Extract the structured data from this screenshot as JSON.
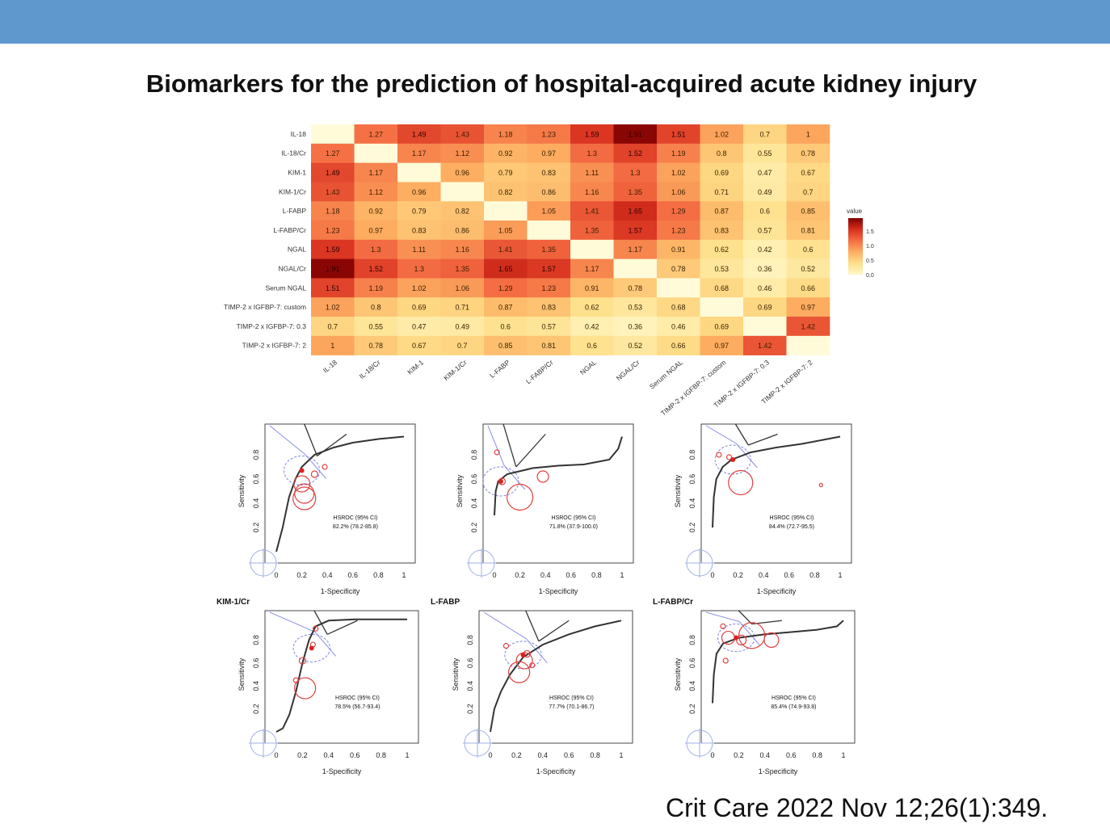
{
  "slide": {
    "title": "Biomarkers for the prediction of hospital-acquired acute kidney injury",
    "citation": "Crit Care 2022 Nov 12;26(1):349.",
    "header_bar_color": "#5f98cc"
  },
  "chart_data": [
    {
      "type": "heatmap",
      "rows": [
        "IL-18",
        "IL-18/Cr",
        "KIM-1",
        "KIM-1/Cr",
        "L-FABP",
        "L-FABP/Cr",
        "NGAL",
        "NGAL/Cr",
        "Serum NGAL",
        "TIMP-2 x IGFBP-7: custom",
        "TIMP-2 x IGFBP-7: 0.3",
        "TIMP-2 x IGFBP-7: 2"
      ],
      "columns": [
        "IL-18",
        "IL-18/Cr",
        "KIM-1",
        "KIM-1/Cr",
        "L-FABP",
        "L-FABP/Cr",
        "NGAL",
        "NGAL/Cr",
        "Serum NGAL",
        "TIMP-2 x IGFBP-7: custom",
        "TIMP-2 x IGFBP-7: 0.3",
        "TIMP-2 x IGFBP-7: 2"
      ],
      "values": [
        [
          null,
          1.27,
          1.49,
          1.43,
          1.18,
          1.23,
          1.59,
          1.91,
          1.51,
          1.02,
          0.7,
          1
        ],
        [
          1.27,
          null,
          1.17,
          1.12,
          0.92,
          0.97,
          1.3,
          1.52,
          1.19,
          0.8,
          0.55,
          0.78
        ],
        [
          1.49,
          1.17,
          null,
          0.96,
          0.79,
          0.83,
          1.11,
          1.3,
          1.02,
          0.69,
          0.47,
          0.67
        ],
        [
          1.43,
          1.12,
          0.96,
          null,
          0.82,
          0.86,
          1.16,
          1.35,
          1.06,
          0.71,
          0.49,
          0.7
        ],
        [
          1.18,
          0.92,
          0.79,
          0.82,
          null,
          1.05,
          1.41,
          1.65,
          1.29,
          0.87,
          0.6,
          0.85
        ],
        [
          1.23,
          0.97,
          0.83,
          0.86,
          1.05,
          null,
          1.35,
          1.57,
          1.23,
          0.83,
          0.57,
          0.81
        ],
        [
          1.59,
          1.3,
          1.11,
          1.16,
          1.41,
          1.35,
          null,
          1.17,
          0.91,
          0.62,
          0.42,
          0.6
        ],
        [
          1.91,
          1.52,
          1.3,
          1.35,
          1.65,
          1.57,
          1.17,
          null,
          0.78,
          0.53,
          0.36,
          0.52
        ],
        [
          1.51,
          1.19,
          1.02,
          1.06,
          1.29,
          1.23,
          0.91,
          0.78,
          null,
          0.68,
          0.46,
          0.66
        ],
        [
          1.02,
          0.8,
          0.69,
          0.71,
          0.87,
          0.83,
          0.62,
          0.53,
          0.68,
          null,
          0.69,
          0.97
        ],
        [
          0.7,
          0.55,
          0.47,
          0.49,
          0.6,
          0.57,
          0.42,
          0.36,
          0.46,
          0.69,
          null,
          1.42
        ],
        [
          1,
          0.78,
          0.67,
          0.7,
          0.85,
          0.81,
          0.6,
          0.52,
          0.66,
          0.97,
          1.42,
          null
        ]
      ],
      "legend": {
        "title": "value",
        "ticks": [
          "1.5",
          "1.0",
          "0.5",
          "0.0"
        ],
        "placement": "right"
      },
      "colorscale": [
        "#fff7c6",
        "#fee08b",
        "#fdae61",
        "#f46d43",
        "#d7301f",
        "#7f0000"
      ]
    },
    {
      "type": "line",
      "panel": "top-left",
      "title": "",
      "xlabel": "1-Specificity",
      "ylabel": "Sensitivity",
      "xticks": [
        "0",
        "0.2",
        "0.4",
        "0.6",
        "0.8",
        "1"
      ],
      "yticks": [
        "0.2",
        "0.4",
        "0.6",
        "0.8"
      ],
      "xlim": [
        0,
        1
      ],
      "ylim": [
        0,
        1
      ],
      "curve": [
        [
          0,
          0
        ],
        [
          0.05,
          0.2
        ],
        [
          0.1,
          0.45
        ],
        [
          0.15,
          0.6
        ],
        [
          0.2,
          0.7
        ],
        [
          0.3,
          0.8
        ],
        [
          0.45,
          0.86
        ],
        [
          0.6,
          0.9
        ],
        [
          0.8,
          0.93
        ],
        [
          1,
          0.95
        ]
      ],
      "summary_point": [
        0.2,
        0.67
      ],
      "studies": [
        [
          0.2,
          0.56,
          10
        ],
        [
          0.22,
          0.48,
          12
        ],
        [
          0.22,
          0.44,
          14
        ],
        [
          0.3,
          0.64,
          4
        ],
        [
          0.38,
          0.7,
          3
        ]
      ],
      "annotation": [
        "HSROC (95% CI)",
        "82.2% (78.2-85.8)"
      ]
    },
    {
      "type": "line",
      "panel": "top-middle",
      "title": "",
      "xlabel": "1-Specificity",
      "ylabel": "Sensitivity",
      "xticks": [
        "0",
        "0.2",
        "0.4",
        "0.6",
        "0.8",
        "1"
      ],
      "yticks": [
        "0.2",
        "0.4",
        "0.6",
        "0.8"
      ],
      "xlim": [
        0,
        1
      ],
      "ylim": [
        0,
        1
      ],
      "curve": [
        [
          0,
          0.3
        ],
        [
          0.01,
          0.5
        ],
        [
          0.03,
          0.58
        ],
        [
          0.1,
          0.64
        ],
        [
          0.3,
          0.69
        ],
        [
          0.5,
          0.71
        ],
        [
          0.7,
          0.72
        ],
        [
          0.9,
          0.76
        ],
        [
          0.97,
          0.85
        ],
        [
          1,
          0.95
        ]
      ],
      "summary_point": [
        0.05,
        0.58
      ],
      "studies": [
        [
          0.2,
          0.45,
          16
        ],
        [
          0.38,
          0.62,
          7
        ],
        [
          0.02,
          0.82,
          3
        ],
        [
          0.06,
          0.58,
          4
        ]
      ],
      "annotation": [
        "HSROC (95% CI)",
        "71.8% (37.9-100.0)"
      ]
    },
    {
      "type": "line",
      "panel": "top-right",
      "title": "",
      "xlabel": "1-Specificity",
      "ylabel": "Sensitivity",
      "xticks": [
        "0",
        "0.2",
        "0.4",
        "0.6",
        "0.8",
        "1"
      ],
      "yticks": [
        "0.2",
        "0.4",
        "0.6",
        "0.8"
      ],
      "xlim": [
        0,
        1
      ],
      "ylim": [
        0,
        1
      ],
      "curve": [
        [
          0,
          0.2
        ],
        [
          0.01,
          0.45
        ],
        [
          0.03,
          0.6
        ],
        [
          0.08,
          0.7
        ],
        [
          0.15,
          0.76
        ],
        [
          0.3,
          0.82
        ],
        [
          0.5,
          0.86
        ],
        [
          0.7,
          0.89
        ],
        [
          0.9,
          0.93
        ],
        [
          1,
          0.95
        ]
      ],
      "summary_point": [
        0.16,
        0.76
      ],
      "studies": [
        [
          0.22,
          0.57,
          15
        ],
        [
          0.05,
          0.8,
          3
        ],
        [
          0.13,
          0.78,
          3
        ],
        [
          0.85,
          0.55,
          2
        ]
      ],
      "annotation": [
        "HSROC (95% CI)",
        "84.4% (72.7-95.5)"
      ]
    },
    {
      "type": "line",
      "panel": "bottom-left",
      "title": "KIM-1/Cr",
      "xlabel": "1-Specificity",
      "ylabel": "Sensitivity",
      "xticks": [
        "0",
        "0.2",
        "0.4",
        "0.6",
        "0.8",
        "1"
      ],
      "yticks": [
        "0.2",
        "0.4",
        "0.6",
        "0.8"
      ],
      "xlim": [
        0,
        1
      ],
      "ylim": [
        0,
        1
      ],
      "curve": [
        [
          0,
          0
        ],
        [
          0.05,
          0.03
        ],
        [
          0.1,
          0.15
        ],
        [
          0.15,
          0.35
        ],
        [
          0.2,
          0.6
        ],
        [
          0.25,
          0.8
        ],
        [
          0.3,
          0.92
        ],
        [
          0.4,
          0.97
        ],
        [
          0.6,
          0.98
        ],
        [
          1,
          0.98
        ]
      ],
      "summary_point": [
        0.27,
        0.73
      ],
      "studies": [
        [
          0.22,
          0.38,
          13
        ],
        [
          0.2,
          0.62,
          4
        ],
        [
          0.15,
          0.45,
          3
        ],
        [
          0.3,
          0.9,
          3
        ],
        [
          0.28,
          0.76,
          3
        ]
      ],
      "annotation": [
        "HSROC (95% CI)",
        "78.5% (56.7-93.4)"
      ]
    },
    {
      "type": "line",
      "panel": "bottom-middle",
      "title": "L-FABP",
      "xlabel": "1-Specificity",
      "ylabel": "Sensitivity",
      "xticks": [
        "0",
        "0.2",
        "0.4",
        "0.6",
        "0.8",
        "1"
      ],
      "yticks": [
        "0.2",
        "0.4",
        "0.6",
        "0.8"
      ],
      "xlim": [
        0,
        1
      ],
      "ylim": [
        0,
        1
      ],
      "curve": [
        [
          0,
          0
        ],
        [
          0.03,
          0.2
        ],
        [
          0.08,
          0.35
        ],
        [
          0.15,
          0.5
        ],
        [
          0.25,
          0.65
        ],
        [
          0.4,
          0.76
        ],
        [
          0.6,
          0.85
        ],
        [
          0.8,
          0.92
        ],
        [
          1,
          0.97
        ]
      ],
      "summary_point": [
        0.25,
        0.67
      ],
      "studies": [
        [
          0.22,
          0.52,
          13
        ],
        [
          0.26,
          0.62,
          10
        ],
        [
          0.32,
          0.58,
          3
        ],
        [
          0.12,
          0.75,
          3
        ],
        [
          0.28,
          0.68,
          4
        ]
      ],
      "annotation": [
        "HSROC (95% CI)",
        "77.7% (70.1-86.7)"
      ]
    },
    {
      "type": "line",
      "panel": "bottom-right",
      "title": "L-FABP/Cr",
      "xlabel": "1-Specificity",
      "ylabel": "Sensitivity",
      "xticks": [
        "0",
        "0.2",
        "0.4",
        "0.6",
        "0.8",
        "1"
      ],
      "yticks": [
        "0.2",
        "0.4",
        "0.6",
        "0.8"
      ],
      "xlim": [
        0,
        1
      ],
      "ylim": [
        0,
        1
      ],
      "curve": [
        [
          0,
          0.25
        ],
        [
          0.01,
          0.5
        ],
        [
          0.03,
          0.68
        ],
        [
          0.08,
          0.77
        ],
        [
          0.2,
          0.82
        ],
        [
          0.4,
          0.85
        ],
        [
          0.6,
          0.87
        ],
        [
          0.8,
          0.89
        ],
        [
          0.95,
          0.92
        ],
        [
          1,
          0.97
        ]
      ],
      "summary_point": [
        0.18,
        0.82
      ],
      "studies": [
        [
          0.12,
          0.82,
          8
        ],
        [
          0.3,
          0.84,
          16
        ],
        [
          0.45,
          0.8,
          9
        ],
        [
          0.22,
          0.8,
          6
        ],
        [
          0.08,
          0.92,
          3
        ],
        [
          0.1,
          0.62,
          3
        ]
      ],
      "annotation": [
        "HSROC (95% CI)",
        "85.4% (74.9-93.8)"
      ]
    }
  ]
}
